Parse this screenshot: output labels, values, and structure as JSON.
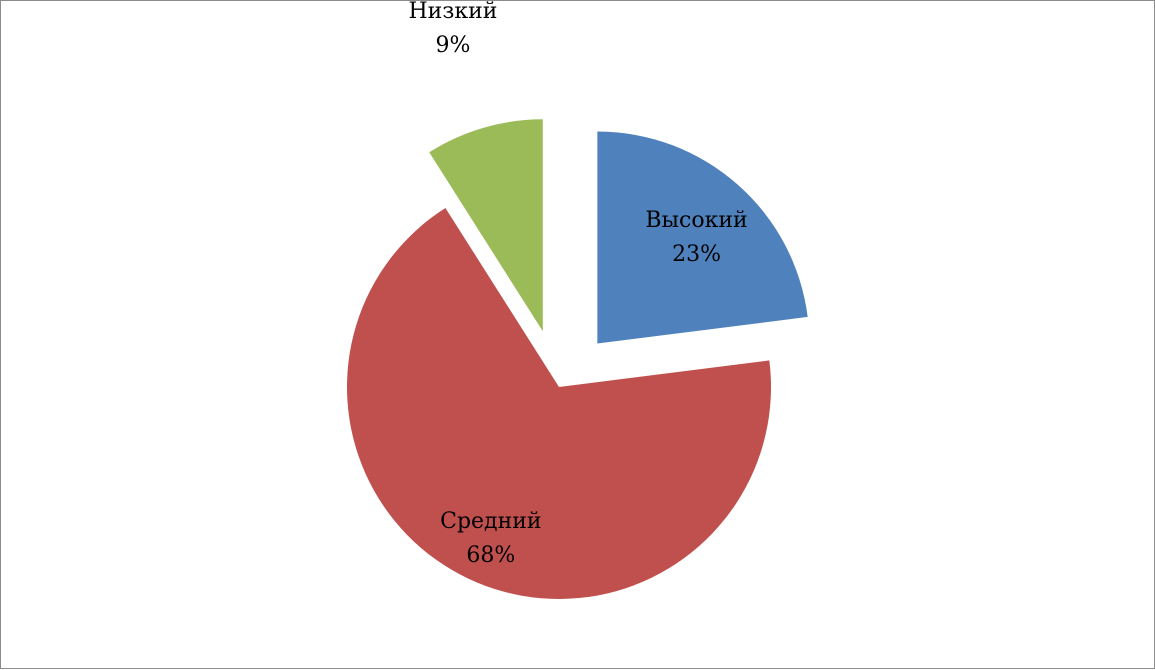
{
  "chart_data": {
    "type": "pie",
    "title": "",
    "exploded": true,
    "legend": "none",
    "slices": [
      {
        "name": "Высокий",
        "value": 23,
        "percent_label": "23%",
        "color": "#4f81bd"
      },
      {
        "name": "Средний",
        "value": 68,
        "percent_label": "68%",
        "color": "#c0504d"
      },
      {
        "name": "Низкий",
        "value": 9,
        "percent_label": "9%",
        "color": "#9bbb59"
      }
    ]
  }
}
